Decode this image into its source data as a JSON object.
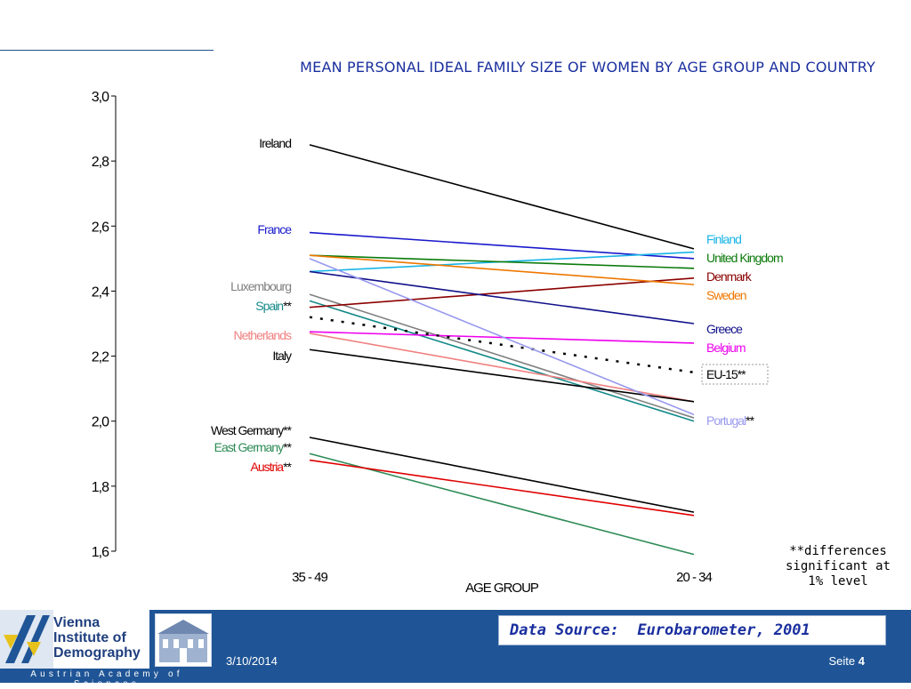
{
  "chart_data": {
    "type": "line",
    "title": "MEAN PERSONAL IDEAL FAMILY SIZE OF WOMEN BY AGE GROUP AND COUNTRY",
    "xlabel": "AGE GROUP",
    "ylabel": "",
    "categories": [
      "35 - 49",
      "20 - 34"
    ],
    "ylim": [
      1.6,
      3.0
    ],
    "yticks": [
      "3,0",
      "2,8",
      "2,6",
      "2,4",
      "2,2",
      "2,0",
      "1,8",
      "1,6"
    ],
    "ytick_values": [
      3.0,
      2.8,
      2.6,
      2.4,
      2.2,
      2.0,
      1.8,
      1.6
    ],
    "grid": false,
    "series": [
      {
        "name": "Ireland",
        "values": [
          2.85,
          2.53
        ],
        "color": "#000000",
        "label_side": "left",
        "marker": ""
      },
      {
        "name": "France",
        "values": [
          2.58,
          2.5
        ],
        "color": "#1a1acc",
        "label_side": "left",
        "marker": ""
      },
      {
        "name": "Luxembourg",
        "values": [
          2.39,
          2.01
        ],
        "color": "#808080",
        "label_side": "left",
        "marker": ""
      },
      {
        "name": "Spain",
        "values": [
          2.37,
          2.0
        ],
        "color": "#168a8a",
        "label_side": "left",
        "marker": "**"
      },
      {
        "name": "Netherlands",
        "values": [
          2.27,
          2.06
        ],
        "color": "#f08080",
        "label_side": "left",
        "marker": ""
      },
      {
        "name": "Italy",
        "values": [
          2.22,
          2.06
        ],
        "color": "#000000",
        "label_side": "left",
        "marker": ""
      },
      {
        "name": "West Germany",
        "values": [
          1.95,
          1.72
        ],
        "color": "#000000",
        "label_side": "left",
        "marker": "**"
      },
      {
        "name": "East Germany",
        "values": [
          1.9,
          1.59
        ],
        "color": "#2e8b57",
        "label_side": "left",
        "marker": "**"
      },
      {
        "name": "Austria",
        "values": [
          1.88,
          1.71
        ],
        "color": "#e00000",
        "label_side": "left",
        "marker": "**"
      },
      {
        "name": "Finland",
        "values": [
          2.46,
          2.52
        ],
        "color": "#19b5e6",
        "label_side": "right",
        "marker": ""
      },
      {
        "name": "United Kingdom",
        "values": [
          2.51,
          2.47
        ],
        "color": "#0a7a0a",
        "label_side": "right",
        "marker": ""
      },
      {
        "name": "Denmark",
        "values": [
          2.35,
          2.44
        ],
        "color": "#8b0000",
        "label_side": "right",
        "marker": ""
      },
      {
        "name": "Sweden",
        "values": [
          2.51,
          2.42
        ],
        "color": "#ee7700",
        "label_side": "right",
        "marker": ""
      },
      {
        "name": "Greece",
        "values": [
          2.46,
          2.3
        ],
        "color": "#10108a",
        "label_side": "right",
        "marker": ""
      },
      {
        "name": "Belgium",
        "values": [
          2.275,
          2.24
        ],
        "color": "#ee00ee",
        "label_side": "right",
        "marker": ""
      },
      {
        "name": "EU-15",
        "values": [
          2.32,
          2.15
        ],
        "color": "#000000",
        "label_side": "right",
        "marker": "**",
        "dashed": true,
        "boxed": true
      },
      {
        "name": "Portugal",
        "values": [
          2.5,
          2.02
        ],
        "color": "#9999ee",
        "label_side": "right",
        "marker": "**"
      }
    ]
  },
  "note": "**differences significant at 1% level",
  "footer": {
    "logo_lines": [
      "Vienna",
      "Institute of",
      "Demography"
    ],
    "logo_sub": "Austrian Academy of Sciences",
    "source_label": "Data Source:",
    "source_value": "Eurobarometer, 2001",
    "date": "3/10/2014",
    "page_label": "Seite",
    "page_number": "4"
  },
  "colors": {
    "title": "#1a2f9e",
    "footer_bg": "#1f5596",
    "logo_accent": "#e8c21c"
  }
}
